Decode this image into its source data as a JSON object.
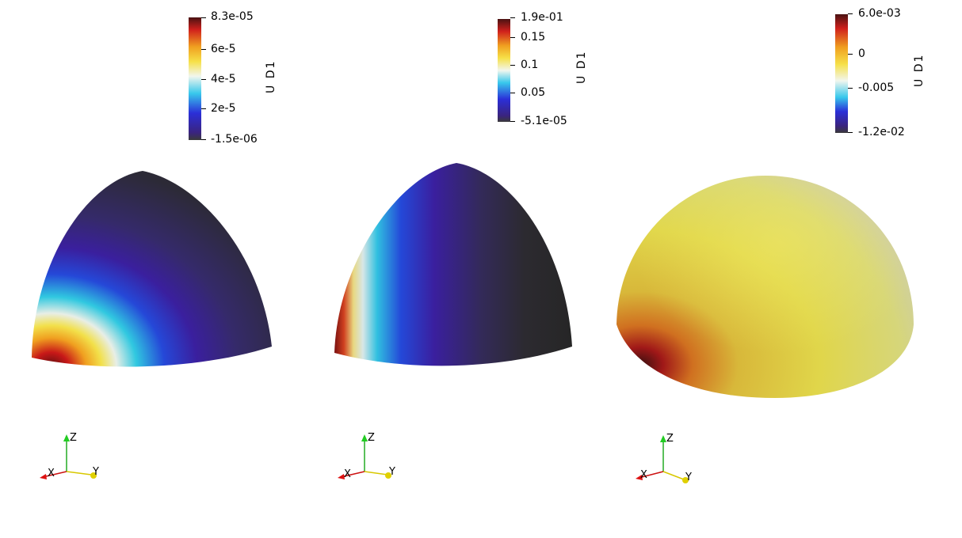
{
  "panels": [
    {
      "colorbar": {
        "title": "U D1",
        "labels": [
          "8.3e-05",
          "6e-5",
          "4e-5",
          "2e-5",
          "-1.5e-06"
        ]
      }
    },
    {
      "colorbar": {
        "title": "U D1",
        "labels": [
          "1.9e-01",
          "0.15",
          "0.1",
          "0.05",
          "-5.1e-05"
        ]
      }
    },
    {
      "colorbar": {
        "title": "U D1",
        "labels": [
          "6.0e-03",
          "0",
          "-0.005",
          "-1.2e-02"
        ]
      }
    }
  ],
  "axes": {
    "x": "X",
    "y": "Y",
    "z": "Z"
  },
  "colors": {
    "colormap": [
      "#2a2a2a",
      "#3b1fa0",
      "#2244e0",
      "#30d0e8",
      "#eaf4f0",
      "#f6e84a",
      "#f0a020",
      "#c81818",
      "#5a1010"
    ]
  }
}
